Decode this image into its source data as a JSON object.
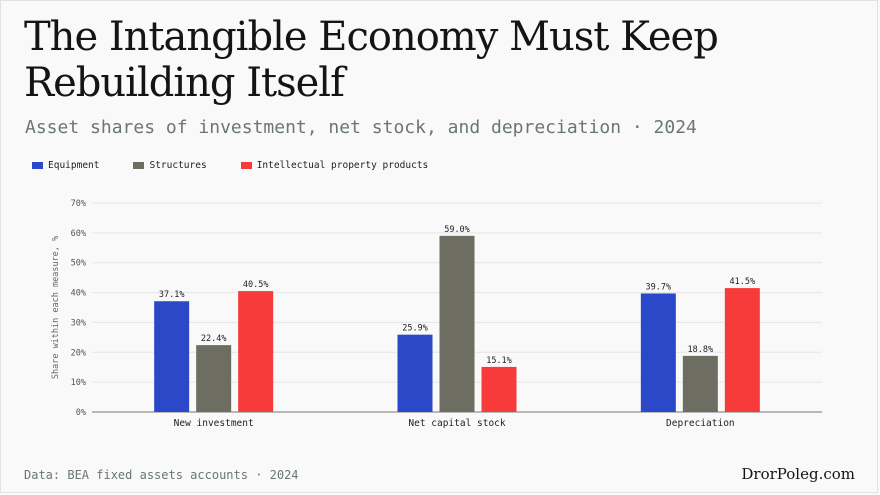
{
  "header": {
    "title": "The Intangible Economy Must Keep Rebuilding Itself",
    "subtitle": "Asset shares of investment, net stock, and depreciation · 2024"
  },
  "footer": {
    "source": "Data: BEA fixed assets accounts · 2024",
    "brand": "DrorPoleg.com"
  },
  "chart_data": {
    "type": "bar",
    "categories": [
      "New investment",
      "Net capital stock",
      "Depreciation"
    ],
    "series": [
      {
        "name": "Equipment",
        "values": [
          37.1,
          25.9,
          39.7
        ],
        "labels": [
          "37.1%",
          "25.9%",
          "39.7%"
        ],
        "color": "#2b48c8"
      },
      {
        "name": "Structures",
        "values": [
          22.4,
          59.0,
          18.8
        ],
        "labels": [
          "22.4%",
          "59.0%",
          "18.8%"
        ],
        "color": "#6d6d62"
      },
      {
        "name": "Intellectual property products",
        "values": [
          40.5,
          15.1,
          41.5
        ],
        "labels": [
          "40.5%",
          "15.1%",
          "41.5%"
        ],
        "color": "#f73b3b"
      }
    ],
    "ylabel": "Share within each measure, %",
    "ylim": [
      0,
      70
    ],
    "yticks": [
      0,
      10,
      20,
      30,
      40,
      50,
      60,
      70
    ],
    "ytick_labels": [
      "0%",
      "10%",
      "20%",
      "30%",
      "40%",
      "50%",
      "60%",
      "70%"
    ],
    "grid": true,
    "legend_position": "top-left"
  }
}
